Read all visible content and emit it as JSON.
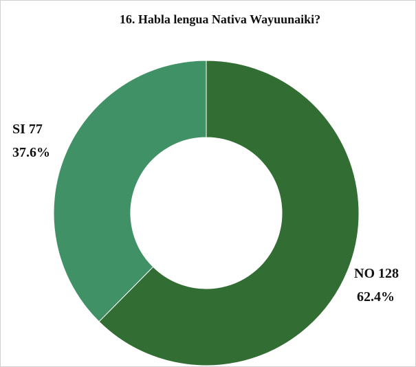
{
  "chart_data": {
    "type": "donut",
    "title": "16. Habla lengua Nativa Wayuunaiki?",
    "categories": [
      "NO",
      "SI"
    ],
    "counts": [
      128,
      77
    ],
    "values": [
      62.4,
      37.6
    ],
    "value_labels": [
      "62.4%",
      "37.6%"
    ],
    "colors": [
      "#326e33",
      "#409266"
    ]
  }
}
